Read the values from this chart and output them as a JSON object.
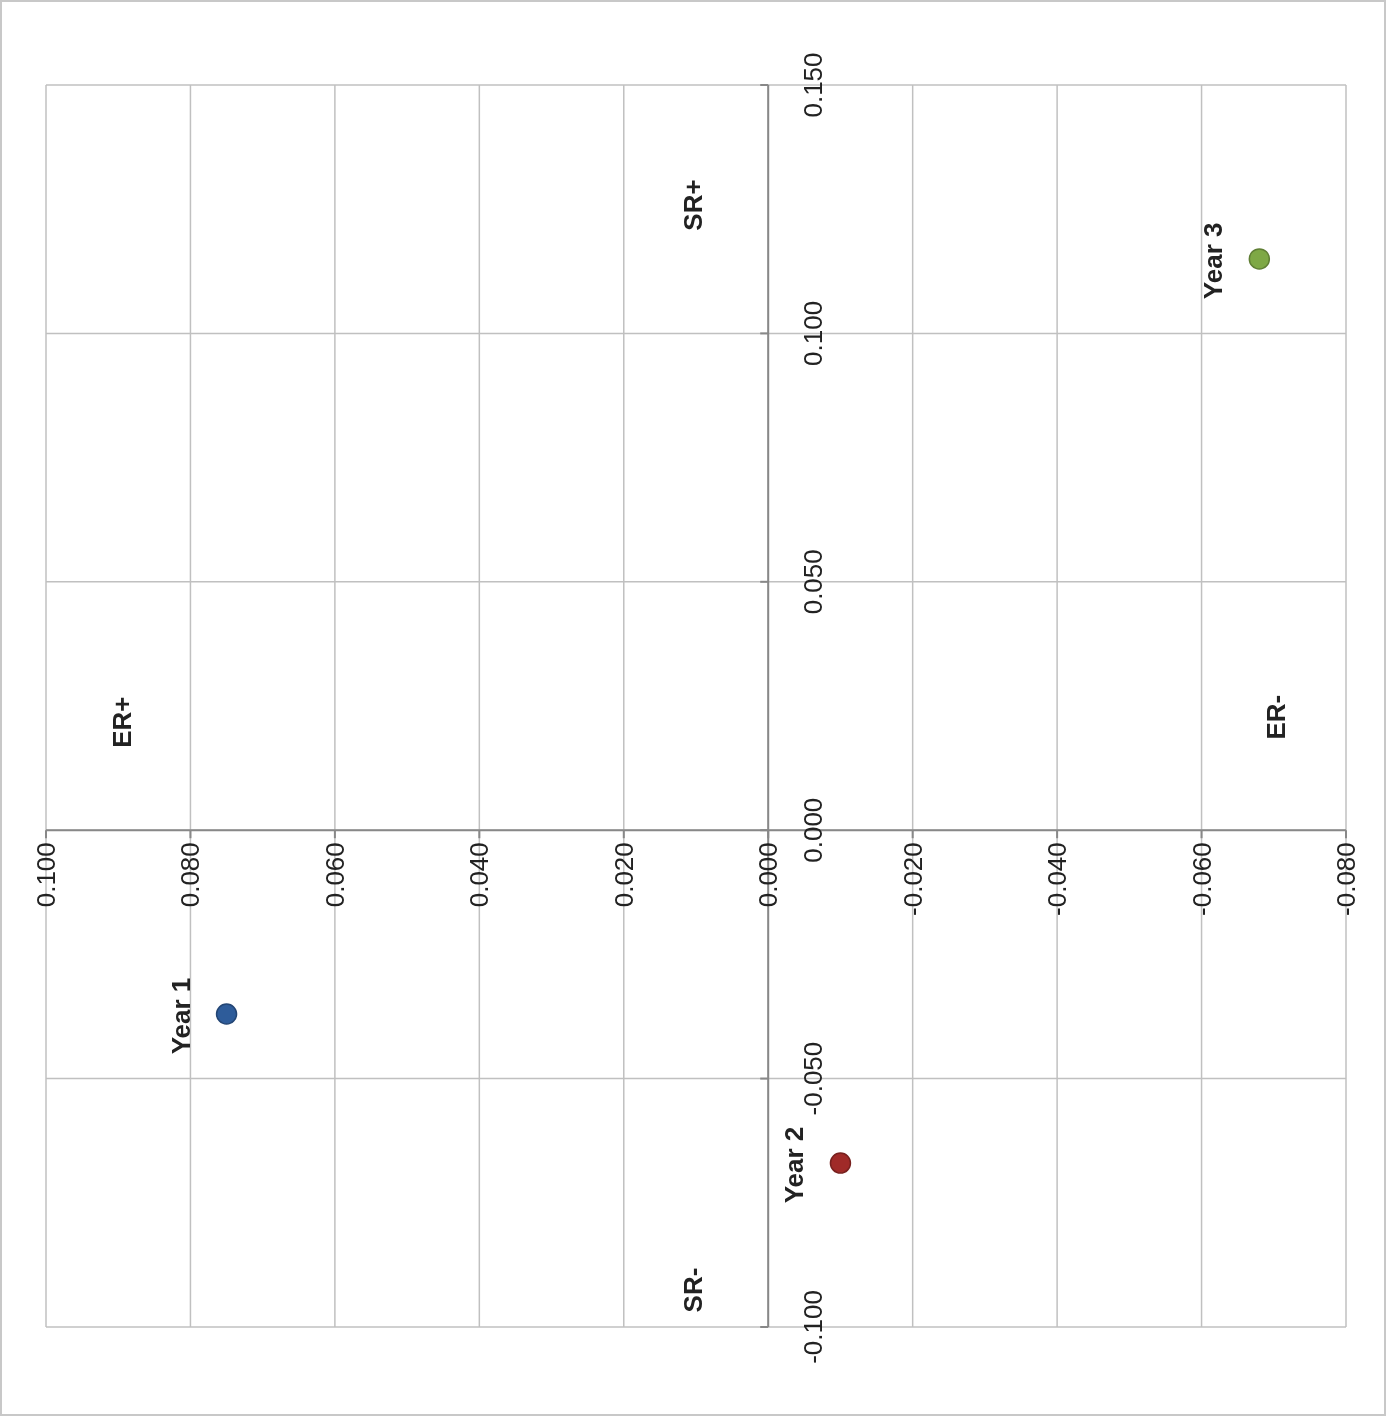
{
  "chart_data": {
    "type": "scatter",
    "xlim": [
      0.1,
      -0.08
    ],
    "xticks": [
      {
        "value": 0.1,
        "label": "0.100"
      },
      {
        "value": 0.08,
        "label": "0.080"
      },
      {
        "value": 0.06,
        "label": "0.060"
      },
      {
        "value": 0.04,
        "label": "0.040"
      },
      {
        "value": 0.02,
        "label": "0.020"
      },
      {
        "value": 0,
        "label": "0.000"
      },
      {
        "value": -0.02,
        "label": "-0.020"
      },
      {
        "value": -0.04,
        "label": "-0.040"
      },
      {
        "value": -0.06,
        "label": "-0.060"
      },
      {
        "value": -0.08,
        "label": "-0.080"
      }
    ],
    "ylim": [
      -0.1,
      0.15
    ],
    "yticks": [
      {
        "value": -0.1,
        "label": "-0.100"
      },
      {
        "value": -0.05,
        "label": "-0.050"
      },
      {
        "value": 0,
        "label": "0.000"
      },
      {
        "value": 0.05,
        "label": "0.050"
      },
      {
        "value": 0.1,
        "label": "0.100"
      },
      {
        "value": 0.15,
        "label": "0.150"
      }
    ],
    "grid": true,
    "marker": "circle",
    "series": [
      {
        "name": "Year 1",
        "color": "#2e5c9a",
        "x": [
          0.075
        ],
        "values": [
          -0.037
        ]
      },
      {
        "name": "Year 2",
        "color": "#a02a28",
        "x": [
          -0.01
        ],
        "values": [
          -0.067
        ]
      },
      {
        "name": "Year 3",
        "color": "#7ea845",
        "x": [
          -0.068
        ],
        "values": [
          0.115
        ]
      }
    ],
    "annotations": [
      "SR+",
      "ER+",
      "ER-",
      "SR-"
    ]
  }
}
